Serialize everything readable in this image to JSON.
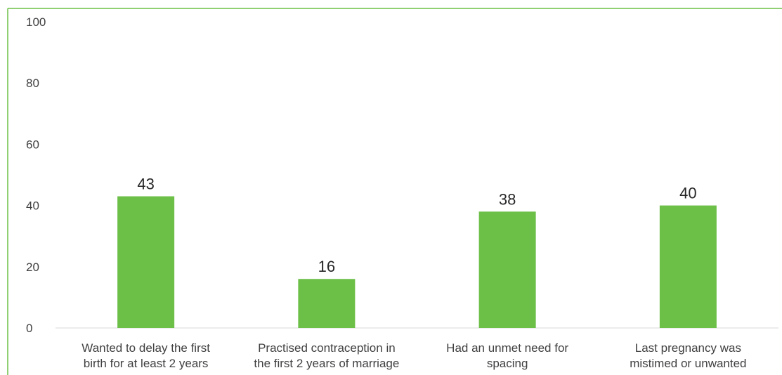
{
  "chart_data": {
    "type": "bar",
    "categories": [
      [
        "Wanted to delay the first",
        "birth for at least 2 years"
      ],
      [
        "Practised contraception in",
        "the first 2 years of marriage"
      ],
      [
        "Had an unmet need for",
        "spacing"
      ],
      [
        "Last pregnancy was",
        "mistimed or unwanted"
      ]
    ],
    "values": [
      43,
      16,
      38,
      40
    ],
    "data_labels": [
      "43",
      "16",
      "38",
      "40"
    ],
    "ylim": [
      0,
      100
    ],
    "yticks": [
      0,
      20,
      40,
      60,
      80,
      100
    ],
    "grid": false,
    "legend": "none",
    "title": "",
    "xlabel": "",
    "ylabel": "",
    "colors": {
      "bar": "#6cbf47",
      "frame": "#6cbf47",
      "axis": "#d9d9d9",
      "tick_text": "#404040",
      "label_text": "#262626"
    }
  }
}
